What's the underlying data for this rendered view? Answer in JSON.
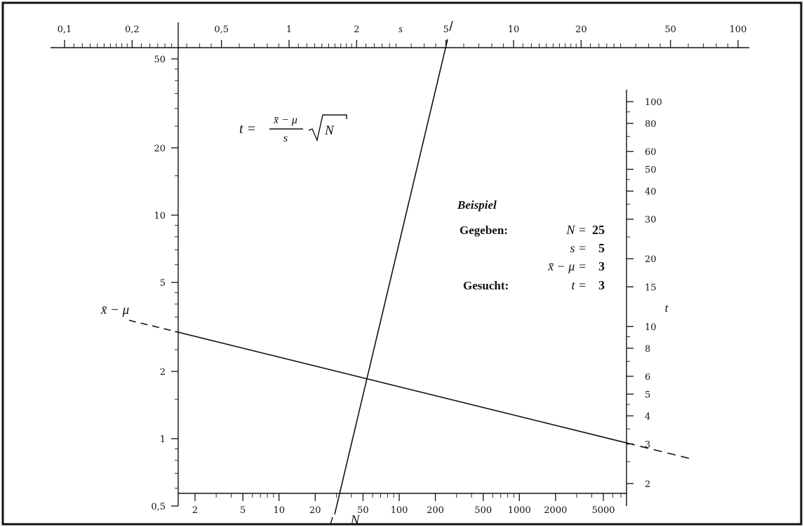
{
  "frame": {
    "border_color": "#111111"
  },
  "scale_s": {
    "label": "s",
    "ticks": [
      "0,1",
      "0,2",
      "0,5",
      "1",
      "2",
      "5",
      "10",
      "20",
      "50",
      "100"
    ],
    "values": [
      0.1,
      0.2,
      0.5,
      1,
      2,
      5,
      10,
      20,
      50,
      100
    ]
  },
  "scale_xmu": {
    "label": "x̄ − μ",
    "ticks": [
      "50",
      "20",
      "10",
      "5",
      "2",
      "1",
      "0,5"
    ],
    "values": [
      50,
      20,
      10,
      5,
      2,
      1,
      0.5
    ]
  },
  "scale_t": {
    "label": "t",
    "ticks": [
      "100",
      "80",
      "60",
      "50",
      "40",
      "30",
      "20",
      "15",
      "10",
      "8",
      "6",
      "5",
      "4",
      "3",
      "2"
    ],
    "values": [
      100,
      80,
      60,
      50,
      40,
      30,
      20,
      15,
      10,
      8,
      6,
      5,
      4,
      3,
      2
    ]
  },
  "scale_N": {
    "label": "N",
    "ticks": [
      "2",
      "5",
      "10",
      "20",
      "50",
      "100",
      "200",
      "500",
      "1000",
      "2000",
      "5000"
    ],
    "values": [
      2,
      5,
      10,
      20,
      50,
      100,
      200,
      500,
      1000,
      2000,
      5000
    ]
  },
  "formula": {
    "lhs": "t =",
    "numerator": "x̄ − μ",
    "denominator": "s",
    "radicand": "N"
  },
  "example": {
    "title": "Beispiel",
    "given_label": "Gegeben:",
    "sought_label": "Gesucht:",
    "rows": [
      {
        "name": "N =",
        "value": "25"
      },
      {
        "name": "s =",
        "value": "5"
      },
      {
        "name": "x̄ − μ =",
        "value": "3"
      },
      {
        "name": "t =",
        "value": "3"
      }
    ]
  }
}
